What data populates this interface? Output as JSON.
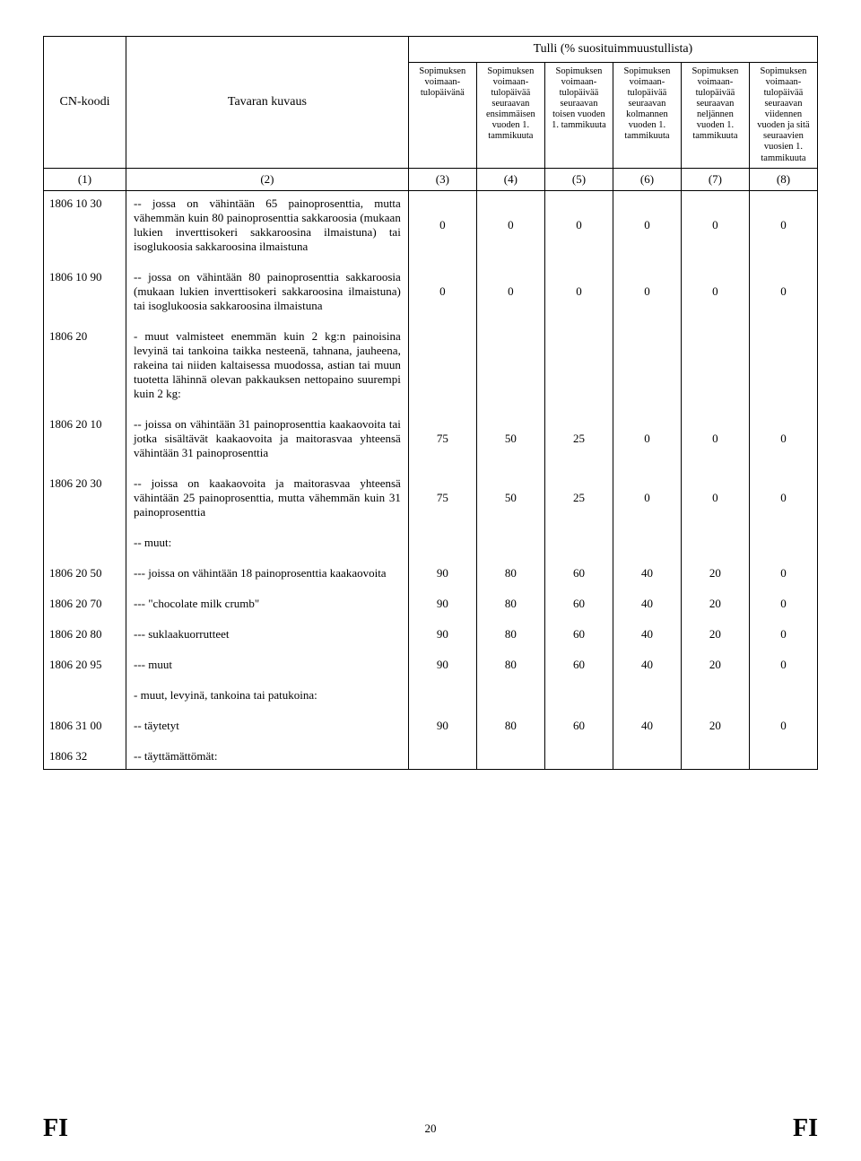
{
  "header": {
    "cn_koodi": "CN-koodi",
    "tavaran_kuvaus": "Tavaran kuvaus",
    "tulli_title": "Tulli (% suosituimmuustullista)",
    "col3": "Sopimuksen voimaan-tulopäivänä",
    "col4": "Sopimuksen voimaan-tulopäivää seuraavan ensimmäisen vuoden 1. tammikuuta",
    "col5": "Sopimuksen voimaan-tulopäivää seuraavan toisen vuoden 1. tammikuuta",
    "col6": "Sopimuksen voimaan-tulopäivää seuraavan kolmannen vuoden 1. tammikuuta",
    "col7": "Sopimuksen voimaan-tulopäivää seuraavan neljännen vuoden 1. tammikuuta",
    "col8": "Sopimuksen voimaan-tulopäivää seuraavan viidennen vuoden ja sitä seuraavien vuosien 1. tammikuuta"
  },
  "numrow": [
    "(1)",
    "(2)",
    "(3)",
    "(4)",
    "(5)",
    "(6)",
    "(7)",
    "(8)"
  ],
  "rows": [
    {
      "cn": "1806 10 30",
      "desc": "-- jossa on vähintään 65 painoprosenttia, mutta vähemmän kuin 80 painoprosenttia sakkaroosia (mukaan lukien inverttisokeri sakkaroosina ilmaistuna) tai isoglukoosia sakkaroosina ilmaistuna",
      "v": [
        "0",
        "0",
        "0",
        "0",
        "0",
        "0"
      ]
    },
    {
      "cn": "1806 10 90",
      "desc": "-- jossa on vähintään 80 painoprosenttia sakkaroosia (mukaan lukien inverttisokeri sakkaroosina ilmaistuna) tai isoglukoosia sakkaroosina ilmaistuna",
      "v": [
        "0",
        "0",
        "0",
        "0",
        "0",
        "0"
      ]
    },
    {
      "cn": "1806 20",
      "desc": "- muut valmisteet enemmän kuin 2 kg:n painoisina levyinä tai tankoina taikka nesteenä, tahnana, jauheena, rakeina tai niiden kaltaisessa muodossa, astian tai muun tuotetta lähinnä olevan pakkauksen nettopaino suurempi kuin 2 kg:",
      "v": [
        "",
        "",
        "",
        "",
        "",
        ""
      ]
    },
    {
      "cn": "1806 20 10",
      "desc": "-- joissa on vähintään 31 painoprosenttia kaakaovoita tai jotka sisältävät kaakaovoita ja maitorasvaa yhteensä vähintään 31 painoprosenttia",
      "v": [
        "75",
        "50",
        "25",
        "0",
        "0",
        "0"
      ]
    },
    {
      "cn": "1806 20 30",
      "desc": "-- joissa on kaakaovoita ja maitorasvaa yhteensä vähintään 25 painoprosenttia, mutta vähemmän kuin 31 painoprosenttia",
      "v": [
        "75",
        "50",
        "25",
        "0",
        "0",
        "0"
      ]
    },
    {
      "cn": "",
      "desc": "-- muut:",
      "v": [
        "",
        "",
        "",
        "",
        "",
        ""
      ]
    },
    {
      "cn": "1806 20 50",
      "desc": "--- joissa on vähintään 18 painoprosenttia kaakaovoita",
      "v": [
        "90",
        "80",
        "60",
        "40",
        "20",
        "0"
      ]
    },
    {
      "cn": "1806 20 70",
      "desc": "--- \"chocolate milk crumb\"",
      "v": [
        "90",
        "80",
        "60",
        "40",
        "20",
        "0"
      ]
    },
    {
      "cn": "1806 20 80",
      "desc": "--- suklaakuorrutteet",
      "v": [
        "90",
        "80",
        "60",
        "40",
        "20",
        "0"
      ]
    },
    {
      "cn": "1806 20 95",
      "desc": "--- muut",
      "v": [
        "90",
        "80",
        "60",
        "40",
        "20",
        "0"
      ]
    },
    {
      "cn": "",
      "desc": "- muut, levyinä, tankoina tai patukoina:",
      "v": [
        "",
        "",
        "",
        "",
        "",
        ""
      ]
    },
    {
      "cn": "1806 31 00",
      "desc": "-- täytetyt",
      "v": [
        "90",
        "80",
        "60",
        "40",
        "20",
        "0"
      ]
    },
    {
      "cn": "1806 32",
      "desc": "-- täyttämättömät:",
      "v": [
        "",
        "",
        "",
        "",
        "",
        ""
      ]
    }
  ],
  "footer": {
    "page": "20",
    "left": "FI",
    "right": "FI"
  }
}
